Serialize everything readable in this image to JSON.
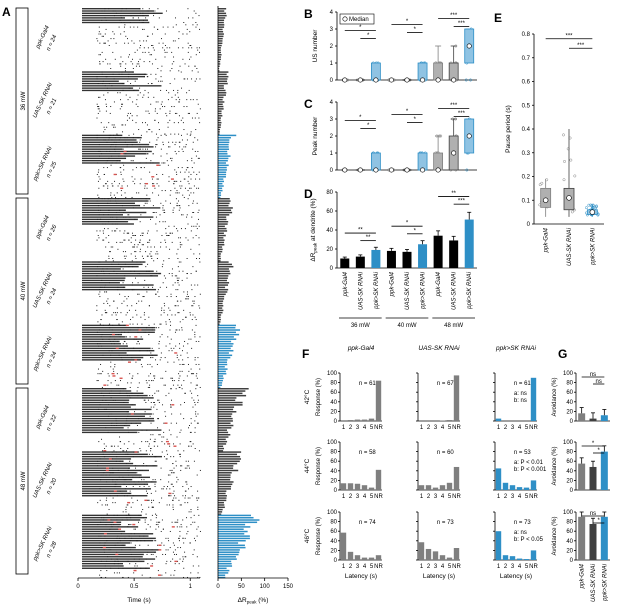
{
  "colors": {
    "gray": "#7f7f7f",
    "dark": "#404040",
    "blue": "#2e8fc6",
    "lightblue": "#8fc3e3",
    "red": "#d9534f",
    "black": "#000000"
  },
  "panels": {
    "A": "A",
    "B": "B",
    "C": "C",
    "D": "D",
    "E": "E",
    "F": "F",
    "G": "G"
  },
  "genotypes": [
    "ppk-Gal4",
    "UAS-SK RNAi",
    "ppk>SK RNAi"
  ],
  "powers": [
    "36 mW",
    "40 mW",
    "48 mW"
  ],
  "temps": [
    "42°C",
    "44°C",
    "46°C"
  ],
  "raster": {
    "groups": [
      {
        "power": "36 mW",
        "rows": [
          {
            "geno": "ppk-Gal4",
            "n": "n = 24"
          },
          {
            "geno": "UAS-SK RNAi",
            "n": "n = 21"
          },
          {
            "geno": "ppk>SK RNAi",
            "n": "n = 25"
          }
        ]
      },
      {
        "power": "40 mW",
        "rows": [
          {
            "geno": "ppk-Gal4",
            "n": "n = 26"
          },
          {
            "geno": "UAS-SK RNAi",
            "n": "n = 24"
          },
          {
            "geno": "ppk>SK RNAi",
            "n": "n = 24"
          }
        ]
      },
      {
        "power": "48 mW",
        "rows": [
          {
            "geno": "ppk-Gal4",
            "n": "n = 22"
          },
          {
            "geno": "UAS-SK RNAi",
            "n": "n = 20"
          },
          {
            "geno": "ppk>SK RNAi",
            "n": "n = 28"
          }
        ]
      }
    ],
    "xticks": [
      "0",
      "0.5",
      "1"
    ],
    "xlabel": "Time (s)",
    "bar_xticks": [
      "0",
      "50",
      "100",
      "150"
    ],
    "bar_xlabel": "ΔR_peak (%)"
  },
  "chart_data": [
    {
      "id": "B",
      "type": "box",
      "ylabel": "US number",
      "ylim": [
        0,
        4
      ],
      "yticks": [
        "0",
        "1",
        "2",
        "3",
        "4"
      ],
      "legend": "Median",
      "groups": [
        "36 mW",
        "40 mW",
        "48 mW"
      ],
      "boxes": [
        {
          "q1": 0,
          "med": 0,
          "q3": 0,
          "max": 0
        },
        {
          "q1": 0,
          "med": 0,
          "q3": 0,
          "max": 0
        },
        {
          "q1": 0,
          "med": 0,
          "q3": 1,
          "max": 1
        },
        {
          "q1": 0,
          "med": 0,
          "q3": 0,
          "max": 0
        },
        {
          "q1": 0,
          "med": 0,
          "q3": 0,
          "max": 0
        },
        {
          "q1": 0,
          "med": 0,
          "q3": 1,
          "max": 1
        },
        {
          "q1": 0,
          "med": 0,
          "q3": 1,
          "max": 2
        },
        {
          "q1": 0,
          "med": 0,
          "q3": 1,
          "max": 2
        },
        {
          "q1": 1,
          "med": 2,
          "q3": 3,
          "max": 3
        }
      ],
      "sig": [
        "*",
        "*",
        "*",
        "*",
        "***",
        "***"
      ]
    },
    {
      "id": "C",
      "type": "box",
      "ylabel": "Peak number",
      "ylim": [
        0,
        4
      ],
      "yticks": [
        "0",
        "1",
        "2",
        "3",
        "4"
      ],
      "boxes": [
        {
          "q1": 0,
          "med": 0,
          "q3": 0,
          "max": 0
        },
        {
          "q1": 0,
          "med": 0,
          "q3": 0,
          "max": 0
        },
        {
          "q1": 0,
          "med": 0,
          "q3": 1,
          "max": 1
        },
        {
          "q1": 0,
          "med": 0,
          "q3": 0,
          "max": 0
        },
        {
          "q1": 0,
          "med": 0,
          "q3": 0,
          "max": 0
        },
        {
          "q1": 0,
          "med": 0,
          "q3": 1,
          "max": 1
        },
        {
          "q1": 0,
          "med": 0,
          "q3": 1,
          "max": 2
        },
        {
          "q1": 0,
          "med": 1,
          "q3": 2,
          "max": 3
        },
        {
          "q1": 1,
          "med": 2,
          "q3": 3,
          "max": 3
        }
      ],
      "sig": [
        "*",
        "*",
        "*",
        "*",
        "***",
        "***"
      ]
    },
    {
      "id": "D",
      "type": "bar",
      "ylabel": "ΔR_peak at dendrite (%)",
      "ylim": [
        0,
        80
      ],
      "yticks": [
        "0",
        "20",
        "40",
        "60",
        "80"
      ],
      "values": [
        10,
        12,
        19,
        18,
        17,
        25,
        34,
        29,
        51
      ],
      "sig": [
        "**",
        "**",
        "*",
        "*",
        "**",
        "***"
      ]
    },
    {
      "id": "E",
      "type": "box",
      "ylabel": "Pause period (s)",
      "ylim": [
        0,
        0.8
      ],
      "yticks": [
        "0",
        "0.1",
        "0.2",
        "0.3",
        "0.4",
        "0.5",
        "0.6",
        "0.7",
        "0.8"
      ],
      "boxes": [
        {
          "min": 0.03,
          "q1": 0.07,
          "med": 0.1,
          "q3": 0.15,
          "max": 0.19
        },
        {
          "min": 0.03,
          "q1": 0.06,
          "med": 0.11,
          "q3": 0.15,
          "max": 0.4
        },
        {
          "min": 0.03,
          "q1": 0.04,
          "med": 0.05,
          "q3": 0.06,
          "max": 0.08
        }
      ],
      "sig": [
        "***",
        "***"
      ]
    },
    {
      "id": "F",
      "type": "bar",
      "ylabel": "Response (%)",
      "xlabel": "Latency (s)",
      "ylim": [
        0,
        100
      ],
      "yticks": [
        "0",
        "20",
        "40",
        "60",
        "80",
        "100"
      ],
      "categories": [
        "1",
        "2",
        "3",
        "4",
        "5",
        "NR"
      ],
      "rows": [
        {
          "temp": "42°C",
          "cells": [
            {
              "n": "n = 61",
              "values": [
                0,
                2,
                3,
                3,
                5,
                84
              ]
            },
            {
              "n": "n = 67",
              "values": [
                0,
                0,
                0,
                1,
                2,
                95
              ]
            },
            {
              "n": "n = 61",
              "values": [
                5,
                0,
                0,
                0,
                0,
                90
              ],
              "stats": [
                "a: ns",
                "b: ns"
              ]
            }
          ]
        },
        {
          "temp": "44°C",
          "cells": [
            {
              "n": "n = 58",
              "values": [
                14,
                14,
                13,
                10,
                5,
                42
              ]
            },
            {
              "n": "n = 60",
              "values": [
                10,
                10,
                5,
                10,
                15,
                48
              ]
            },
            {
              "n": "n = 53",
              "values": [
                45,
                15,
                10,
                6,
                5,
                20
              ],
              "stats": [
                "a: P < 0.01",
                "b: P < 0.001"
              ]
            }
          ]
        },
        {
          "temp": "46°C",
          "cells": [
            {
              "n": "n = 74",
              "values": [
                57,
                17,
                10,
                5,
                5,
                10
              ]
            },
            {
              "n": "n = 73",
              "values": [
                37,
                23,
                18,
                10,
                5,
                25
              ]
            },
            {
              "n": "n = 73",
              "values": [
                60,
                10,
                8,
                3,
                2,
                20
              ],
              "stats": [
                "a: ns",
                "b: P < 0.05"
              ]
            }
          ]
        }
      ]
    },
    {
      "id": "G",
      "type": "bar",
      "ylabel": "Avoidance (%)",
      "ylim": [
        0,
        100
      ],
      "yticks": [
        "0",
        "20",
        "40",
        "60",
        "80",
        "100"
      ],
      "rows": [
        {
          "temp": "42°C",
          "values": [
            16,
            5,
            12
          ],
          "sig": [
            "ns",
            "ns"
          ]
        },
        {
          "temp": "44°C",
          "values": [
            55,
            48,
            80
          ],
          "sig": [
            "*",
            "*"
          ]
        },
        {
          "temp": "46°C",
          "values": [
            90,
            75,
            90
          ],
          "sig": [
            "ns",
            "*"
          ]
        }
      ]
    }
  ]
}
